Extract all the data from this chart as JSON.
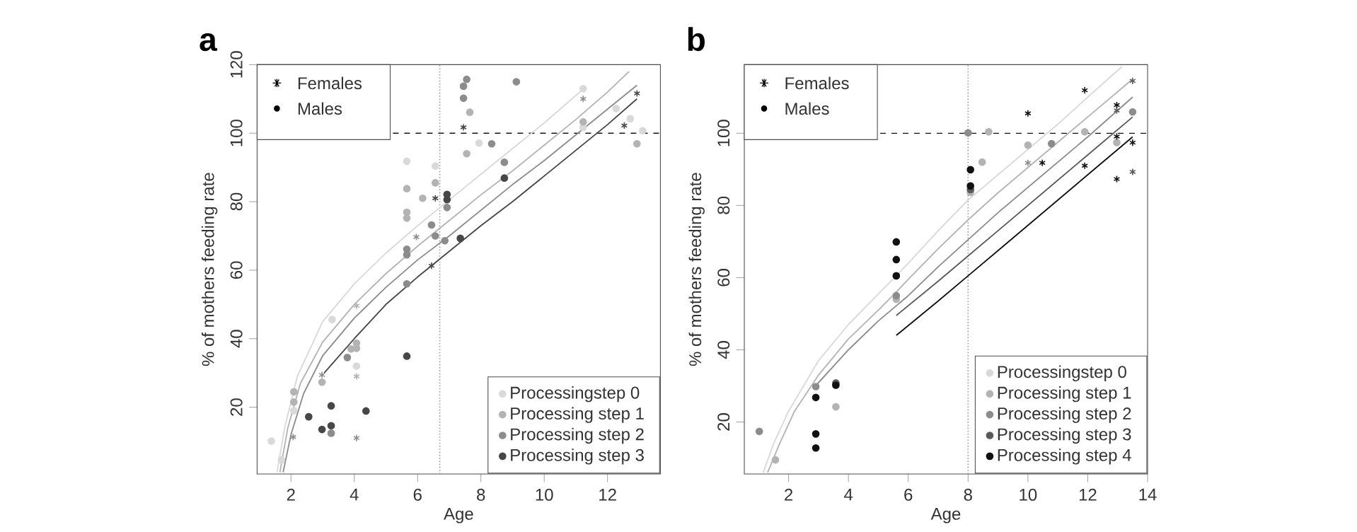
{
  "chart_data": [
    {
      "type": "scatter",
      "title": "a",
      "xlabel": "Age",
      "ylabel": "% of mothers feeding rate",
      "xlim": [
        0.93,
        13.67
      ],
      "ylim": [
        0.5,
        120
      ],
      "xticks": [
        2,
        4,
        6,
        8,
        10,
        12
      ],
      "yticks": [
        20,
        40,
        60,
        80,
        100,
        120
      ],
      "legend": "bottom right",
      "annotations": [
        "Females",
        "Males"
      ],
      "ref_lines": [
        {
          "axis": "y",
          "value": 100,
          "line_style": "dashed",
          "color": "#000000"
        },
        {
          "axis": "x",
          "value": 6.7,
          "line_style": "dotted",
          "color": "#999999"
        }
      ],
      "series": [
        {
          "name": "Processingstep 0",
          "color": "#d9d9d9",
          "type": "scatter",
          "marker": "circle",
          "x": [
            1.38,
            1.7,
            2.09,
            3.3,
            4.07,
            5.66,
            6.56,
            7.94,
            11.23,
            11.23,
            12.27,
            12.72,
            13.11
          ],
          "values": [
            10.1,
            4.6,
            19,
            45.6,
            32,
            91.8,
            90.4,
            97.1,
            113,
            101.7,
            107.2,
            104.2,
            100.7
          ]
        },
        {
          "name": "Processing step 1",
          "color": "#b3b3b3",
          "type": "scatter",
          "marker": "circle",
          "x": [
            2.09,
            2.09,
            2.98,
            3.9,
            4.07,
            4.07,
            5.66,
            5.66,
            5.66,
            6.16,
            6.56,
            7.65,
            7.55,
            11.23,
            12.93
          ],
          "values": [
            21.5,
            24.5,
            27.3,
            37,
            38.7,
            37.2,
            83.8,
            76.9,
            75.2,
            81,
            85.5,
            106.1,
            94,
            103.3,
            96.9
          ]
        },
        {
          "color": "#b3b3b3",
          "type": "scatter",
          "marker": "cross",
          "x": [
            4.07,
            4.07
          ],
          "values": [
            49.6,
            29
          ]
        },
        {
          "name": "Processing step 2",
          "color": "#8c8c8c",
          "type": "scatter",
          "marker": "circle",
          "x": [
            3.27,
            3.78,
            5.66,
            5.66,
            5.66,
            6.44,
            6.56,
            6.93,
            6.86,
            7.45,
            7.55,
            7.45,
            8.34,
            8.74,
            9.12
          ],
          "values": [
            12.4,
            34.5,
            66.1,
            64.5,
            56,
            73.2,
            70,
            78.3,
            68.6,
            113.7,
            115.7,
            110.2,
            96.9,
            91.5,
            115
          ]
        },
        {
          "color": "#8c8c8c",
          "type": "scatter",
          "marker": "cross",
          "x": [
            2.07,
            2.98,
            4.07,
            5.96,
            11.23
          ],
          "values": [
            11.3,
            29.4,
            11,
            69.7,
            110
          ]
        },
        {
          "name": "Processing step 3",
          "color": "#474747",
          "type": "scatter",
          "marker": "circle",
          "x": [
            2.56,
            2.98,
            3.27,
            3.27,
            4.37,
            5.66,
            6.93,
            6.93,
            7.35,
            8.74
          ],
          "values": [
            17.2,
            13.5,
            20.4,
            14.6,
            18.9,
            34.9,
            82.1,
            80.6,
            69.3,
            86.9
          ]
        },
        {
          "color": "#474747",
          "type": "scatter",
          "marker": "cross",
          "x": [
            6.44,
            6.56,
            7.45,
            12.53,
            12.93
          ],
          "values": [
            61.3,
            81,
            101.7,
            102.2,
            111.6
          ]
        },
        {
          "color": "#d9d9d9",
          "type": "line",
          "x": [
            1.56,
            1.8,
            2.2,
            3,
            4,
            5,
            6,
            7,
            8,
            9,
            10,
            11.25
          ],
          "values": [
            1,
            14,
            29,
            45,
            56,
            65,
            73,
            80.5,
            88,
            95.5,
            103,
            113
          ]
        },
        {
          "color": "#b3b3b3",
          "type": "line",
          "x": [
            1.65,
            1.9,
            2.3,
            3,
            4,
            5,
            6,
            7,
            8,
            9,
            10,
            11,
            12,
            12.68
          ],
          "values": [
            1,
            14,
            27,
            39,
            50,
            59,
            67,
            74.5,
            82,
            89,
            96.5,
            104,
            112,
            118
          ]
        },
        {
          "color": "#8c8c8c",
          "type": "line",
          "x": [
            1.75,
            2,
            2.4,
            3,
            4,
            5,
            6,
            7,
            8,
            9,
            10,
            11,
            12,
            12.93
          ],
          "values": [
            1,
            12,
            24,
            35,
            46,
            55,
            63,
            70,
            77.5,
            85,
            92,
            99.5,
            107,
            114
          ]
        },
        {
          "color": "#474747",
          "type": "line",
          "x": [
            3.05,
            4,
            5,
            6,
            7,
            8,
            9,
            10,
            11,
            12,
            12.93
          ],
          "values": [
            30,
            40,
            50,
            58,
            65.5,
            73,
            80,
            87.5,
            95,
            102.5,
            110
          ]
        }
      ]
    },
    {
      "type": "scatter",
      "title": "b",
      "xlabel": "Age",
      "ylabel": "% of mothers feeding rate",
      "xlim": [
        0.52,
        14
      ],
      "ylim": [
        5.6,
        119
      ],
      "xticks": [
        2,
        4,
        6,
        8,
        10,
        12,
        14
      ],
      "yticks": [
        20,
        40,
        60,
        80,
        100
      ],
      "legend": "bottom right",
      "annotations": [
        "Females",
        "Males"
      ],
      "ref_lines": [
        {
          "axis": "y",
          "value": 100,
          "line_style": "dashed",
          "color": "#000000"
        },
        {
          "axis": "x",
          "value": 8,
          "line_style": "dotted",
          "color": "#999999"
        }
      ],
      "series": [
        {
          "name": "Processingstep 0",
          "color": "#d9d9d9",
          "type": "scatter",
          "marker": "circle"
        },
        {
          "name": "Processing step 1",
          "color": "#b3b3b3",
          "type": "scatter",
          "marker": "circle",
          "x": [
            1.56,
            3.58,
            5.6,
            8.08,
            8.47,
            8.69,
            10,
            11.9,
            12.97
          ],
          "values": [
            9.5,
            24.2,
            54,
            83.6,
            92,
            100.4,
            96.7,
            100.4,
            97.4
          ]
        },
        {
          "name": "Processing step 2",
          "color": "#8c8c8c",
          "type": "scatter",
          "marker": "circle",
          "x": [
            1.02,
            2.91,
            5.6,
            8,
            10.79,
            13.5
          ],
          "values": [
            17.4,
            29.8,
            55,
            100.1,
            97.1,
            105.9
          ]
        },
        {
          "color": "#8c8c8c",
          "type": "scatter",
          "marker": "cross",
          "x": [
            10
          ],
          "values": [
            91.8
          ]
        },
        {
          "name": "Processing step 3",
          "color": "#595959",
          "type": "scatter",
          "marker": "circle",
          "x": [
            3.58,
            8.08
          ],
          "values": [
            30.8,
            84.4
          ]
        },
        {
          "color": "#595959",
          "type": "scatter",
          "marker": "cross",
          "x": [
            12.97,
            13.5,
            13.5
          ],
          "values": [
            106.3,
            114.5,
            89.3
          ]
        },
        {
          "name": "Processing step 4",
          "color": "#111111",
          "type": "scatter",
          "marker": "circle",
          "x": [
            2.91,
            2.91,
            2.91,
            3.58,
            5.6,
            5.6,
            5.6,
            8.08,
            8.08
          ],
          "values": [
            26.8,
            16.7,
            12.8,
            30.2,
            69.9,
            65,
            60.5,
            89.9,
            85.4
          ]
        },
        {
          "color": "#111111",
          "type": "scatter",
          "marker": "cross",
          "x": [
            10,
            10.48,
            11.9,
            11.9,
            12.97,
            12.97,
            12.97,
            13.5
          ],
          "values": [
            105.5,
            91.8,
            111.9,
            91,
            107.8,
            99.1,
            87.3,
            97.4
          ]
        },
        {
          "color": "#d9d9d9",
          "type": "line",
          "x": [
            1.15,
            1.5,
            2,
            3,
            4,
            5,
            5.6,
            6,
            7,
            8,
            9,
            10,
            11,
            12,
            13.15
          ],
          "values": [
            6,
            14,
            23,
            37,
            47,
            55.5,
            60.5,
            64,
            73,
            81.5,
            88.5,
            95.5,
            102.5,
            110,
            118.5
          ]
        },
        {
          "color": "#b3b3b3",
          "type": "line",
          "x": [
            1.3,
            1.7,
            2.2,
            3,
            4,
            5,
            5.6,
            6,
            7,
            8,
            9,
            10,
            11,
            12,
            13.5
          ],
          "values": [
            6,
            14,
            23,
            33,
            43,
            51,
            56,
            59.5,
            68,
            76,
            83.5,
            90.5,
            97.5,
            104.5,
            115
          ]
        },
        {
          "color": "#8c8c8c",
          "type": "line",
          "x": [
            2.9,
            4,
            5,
            6,
            7,
            8,
            9,
            10,
            11,
            12,
            13.5
          ],
          "values": [
            30,
            40,
            48,
            55,
            63,
            70.5,
            78,
            85,
            92,
            99,
            110
          ]
        },
        {
          "color": "#595959",
          "type": "line",
          "x": [
            5.6,
            7,
            8,
            9,
            10,
            11,
            12,
            13.5
          ],
          "values": [
            49.5,
            59,
            66,
            73,
            80,
            87,
            94,
            104.5
          ]
        },
        {
          "color": "#111111",
          "type": "line",
          "x": [
            5.6,
            7,
            8,
            9,
            10,
            11,
            12,
            13.5
          ],
          "values": [
            44,
            53.5,
            60.5,
            67.5,
            74.5,
            81.5,
            88.5,
            99
          ]
        }
      ]
    }
  ]
}
